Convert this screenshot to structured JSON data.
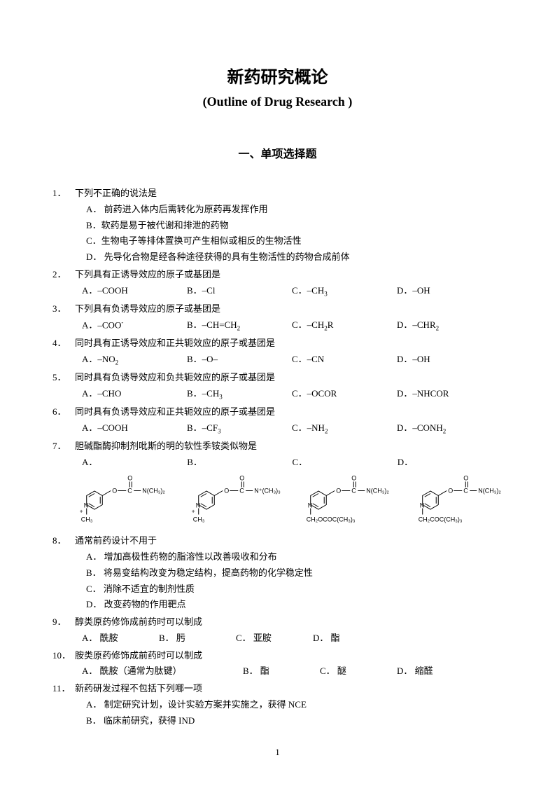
{
  "title_cn": "新药研究概论",
  "title_en": "(Outline of Drug Research )",
  "section": "一、单项选择题",
  "page_number": "1",
  "q1": {
    "num": "1．",
    "stem": "下列不正确的说法是",
    "a": "A． 前药进入体内后需转化为原药再发挥作用",
    "b": "B．软药是易于被代谢和排泄的药物",
    "c": "C．生物电子等排体置换可产生相似或相反的生物活性",
    "d": "D． 先导化合物是经各种途径获得的具有生物活性的药物合成前体"
  },
  "q2": {
    "num": "2．",
    "stem": "下列具有正诱导效应的原子或基团是",
    "a": "A．–COOH",
    "b": "B．–Cl",
    "c": "C．–CH",
    "c_sub": "3",
    "d": "D．–OH"
  },
  "q3": {
    "num": "3．",
    "stem": "下列具有负诱导效应的原子或基团是",
    "a": "A．–COO",
    "a_sup": "-",
    "b": "B．–CH=CH",
    "b_sub": "2",
    "c": "C．–CH",
    "c_sub": "2",
    "c_tail": "R",
    "d": "D．–CHR",
    "d_sub": "2"
  },
  "q4": {
    "num": "4．",
    "stem": "同时具有正诱导效应和正共轭效应的原子或基团是",
    "a": "A．–NO",
    "a_sub": "2",
    "b": "B．–O–",
    "c": "C．–CN",
    "d": "D．–OH"
  },
  "q5": {
    "num": "5．",
    "stem": "同时具有负诱导效应和负共轭效应的原子或基团是",
    "a": "A．–CHO",
    "b": "B．–CH",
    "b_sub": "3",
    "c": "C．–OCOR",
    "d": "D．–NHCOR"
  },
  "q6": {
    "num": "6．",
    "stem": "同时具有负诱导效应和正共轭效应的原子或基团是",
    "a": "A．–COOH",
    "b": "B．–CF",
    "b_sub": "3",
    "c": "C．–NH",
    "c_sub": "2",
    "d": "D．–CONH",
    "d_sub": "2"
  },
  "q7": {
    "num": "7．",
    "stem": "胆碱酯酶抑制剂吡斯的明的软性季铵类似物是",
    "a": "A．",
    "b": "B．",
    "c": "C．",
    "d": "D．",
    "chem_a": {
      "r_top": "N(CH₃)₂",
      "r_bottom": "CH₃",
      "n_plus": true,
      "bottom_type": "direct"
    },
    "chem_b": {
      "r_top": "N⁺(CH₃)₃",
      "r_bottom": "CH₃",
      "n_plus": true,
      "bottom_type": "direct"
    },
    "chem_c": {
      "r_top": "N(CH₃)₂",
      "r_bottom": "CH₂OCOC(CH₃)₃",
      "n_plus": false,
      "bottom_type": "ch2"
    },
    "chem_d": {
      "r_top": "N(CH₃)₂",
      "r_bottom": "CH₂COC(CH₃)₃",
      "n_plus": false,
      "bottom_type": "ch2"
    }
  },
  "q8": {
    "num": "8．",
    "stem": "通常前药设计不用于",
    "a": "A． 增加高极性药物的脂溶性以改善吸收和分布",
    "b": "B． 将易变结构改变为稳定结构，提高药物的化学稳定性",
    "c": "C． 消除不适宜的制剂性质",
    "d": "D． 改变药物的作用靶点"
  },
  "q9": {
    "num": "9．",
    "stem": "醇类原药修饰成前药时可以制成",
    "a": "A． 酰胺",
    "b": "B． 肟",
    "c": "C． 亚胺",
    "d": "D． 酯"
  },
  "q10": {
    "num": "10．",
    "stem": "胺类原药修饰成前药时可以制成",
    "a": "A． 酰胺（通常为肽键）",
    "b": "B． 酯",
    "c": "C． 醚",
    "d": "D． 缩醛"
  },
  "q11": {
    "num": "11．",
    "stem": "新药研发过程不包括下列哪一项",
    "a": "A． 制定研究计划，设计实验方案并实施之，获得 NCE",
    "b": "B． 临床前研究，获得 IND"
  },
  "chem_style": {
    "stroke": "#000000",
    "stroke_width": 1,
    "font_size": 9
  }
}
